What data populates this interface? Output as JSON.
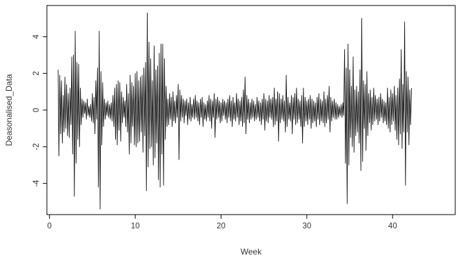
{
  "chart_data": {
    "type": "line",
    "title": "",
    "xlabel": "Week",
    "ylabel": "Deasonalised_Data",
    "xlim": [
      -0.3,
      47.3
    ],
    "ylim": [
      -5.7,
      5.7
    ],
    "xticks": [
      0,
      10,
      20,
      30,
      40
    ],
    "yticks": [
      -4,
      -2,
      0,
      2,
      4
    ],
    "grid": false,
    "legend": "none",
    "colors": {
      "line": "#111111",
      "axis": "#000000",
      "text": "#333333"
    },
    "series": [
      {
        "x_start": 1.0,
        "x_step": 0.1,
        "values": [
          2.2,
          -2.5,
          1.9,
          -1.3,
          1.6,
          -1.8,
          0.8,
          -1.2,
          1.8,
          -1.0,
          1.4,
          -1.4,
          0.9,
          -1.5,
          1.2,
          -0.8,
          2.9,
          -2.4,
          3.0,
          -4.7,
          4.3,
          -2.9,
          2.6,
          -1.6,
          2.5,
          -2.0,
          1.2,
          -0.8,
          0.6,
          -0.4,
          0.5,
          -0.2,
          0.4,
          -0.5,
          0.6,
          -0.3,
          0.2,
          -0.4,
          0.3,
          -0.6,
          0.9,
          -0.7,
          0.7,
          -1.3,
          1.6,
          -0.5,
          2.3,
          -4.2,
          4.3,
          -5.4,
          2.1,
          -1.9,
          1.5,
          -0.9,
          0.6,
          -0.5,
          0.4,
          -0.3,
          0.5,
          -0.4,
          0.3,
          -0.5,
          0.4,
          -0.6,
          0.8,
          -0.9,
          1.2,
          -1.6,
          1.4,
          -1.9,
          1.6,
          -1.1,
          1.5,
          -1.7,
          1.0,
          -0.7,
          0.7,
          -0.4,
          0.5,
          -0.9,
          1.4,
          -1.2,
          0.9,
          -2.4,
          1.9,
          -1.8,
          1.5,
          -0.9,
          1.3,
          -1.9,
          2.0,
          -2.0,
          2.1,
          -1.8,
          1.6,
          -1.7,
          1.8,
          -1.2,
          1.9,
          -2.3,
          2.3,
          -1.4,
          2.6,
          -4.4,
          5.3,
          -3.1,
          3.7,
          -2.1,
          2.8,
          -2.0,
          1.6,
          -3.0,
          3.5,
          -2.6,
          2.2,
          -1.8,
          2.4,
          -3.8,
          3.1,
          -4.2,
          3.6,
          -2.4,
          3.6,
          -4.1,
          2.8,
          -1.6,
          1.3,
          -0.9,
          0.6,
          -0.8,
          0.9,
          -0.5,
          0.7,
          -0.9,
          1.0,
          -0.6,
          0.5,
          -0.7,
          0.8,
          -0.4,
          1.4,
          -2.7,
          1.1,
          -0.6,
          0.8,
          -0.4,
          0.6,
          -0.7,
          0.5,
          -0.3,
          0.6,
          -0.8,
          0.4,
          -0.5,
          0.7,
          -0.6,
          0.3,
          -0.4,
          0.6,
          -0.5,
          0.8,
          -0.4,
          0.5,
          -0.6,
          0.4,
          -0.8,
          0.6,
          -0.4,
          0.7,
          -0.9,
          0.4,
          -0.5,
          0.3,
          -0.6,
          0.5,
          -0.4,
          0.8,
          -0.6,
          0.6,
          -1.0,
          0.5,
          -0.4,
          0.9,
          -1.5,
          0.6,
          -0.5,
          0.7,
          -0.4,
          0.5,
          -0.7,
          0.4,
          -0.6,
          0.6,
          -0.3,
          0.5,
          -0.5,
          0.4,
          -0.7,
          0.6,
          -0.4,
          0.8,
          -0.6,
          0.5,
          -0.9,
          0.7,
          -0.5,
          0.4,
          -0.6,
          0.9,
          -0.4,
          0.6,
          -0.8,
          0.5,
          -0.6,
          0.7,
          -0.9,
          1.1,
          -0.7,
          1.8,
          -1.3,
          0.8,
          -0.5,
          0.6,
          -0.7,
          0.4,
          -0.5,
          0.6,
          -0.4,
          0.5,
          -0.6,
          0.3,
          -0.5,
          0.7,
          -0.4,
          0.5,
          -0.6,
          0.4,
          -0.8,
          0.6,
          -0.5,
          0.9,
          -1.1,
          0.6,
          -0.6,
          0.5,
          -0.7,
          0.8,
          -0.4,
          0.6,
          -0.5,
          0.7,
          -0.9,
          1.2,
          -0.8,
          0.6,
          -0.6,
          1.0,
          -1.7,
          0.9,
          -0.7,
          0.6,
          -0.5,
          0.8,
          -0.6,
          0.5,
          -1.2,
          1.9,
          -0.9,
          0.7,
          -0.5,
          0.4,
          -0.6,
          0.8,
          -1.3,
          0.7,
          -0.5,
          0.9,
          -0.8,
          1.2,
          -0.7,
          0.6,
          -0.5,
          0.5,
          -0.9,
          0.8,
          -1.8,
          1.2,
          -0.9,
          0.7,
          -0.6,
          0.5,
          -0.8,
          0.6,
          -0.5,
          0.8,
          -1.0,
          0.6,
          -0.7,
          0.5,
          -0.6,
          0.4,
          -0.9,
          0.7,
          -0.5,
          0.9,
          -0.8,
          0.6,
          -0.6,
          0.5,
          -0.7,
          1.0,
          -0.9,
          0.6,
          -0.7,
          0.8,
          -0.5,
          1.3,
          -1.2,
          0.7,
          -0.6,
          0.5,
          -0.4,
          0.6,
          -0.5,
          0.4,
          -0.5,
          0.3,
          -0.4,
          0.2,
          -0.3,
          0.3,
          -0.4,
          0.4,
          -0.3,
          3.3,
          -2.9,
          2.3,
          -5.1,
          3.6,
          -3.0,
          2.2,
          -1.5,
          1.3,
          -2.0,
          2.9,
          -2.3,
          1.1,
          -1.4,
          1.3,
          -1.2,
          1.0,
          -1.8,
          2.2,
          -3.3,
          5.0,
          -2.8,
          1.6,
          -1.0,
          1.4,
          -2.2,
          2.1,
          -1.4,
          0.9,
          -0.7,
          1.1,
          -1.1,
          0.7,
          -0.8,
          1.2,
          -0.6,
          0.8,
          -0.5,
          0.6,
          -0.8,
          0.7,
          -0.6,
          0.9,
          -0.4,
          0.6,
          -0.7,
          0.5,
          -0.6,
          0.4,
          -0.8,
          1.2,
          -1.0,
          0.7,
          -1.2,
          1.1,
          -0.8,
          0.9,
          -0.6,
          1.3,
          -1.1,
          0.8,
          -1.6,
          1.2,
          -1.9,
          1.7,
          -1.3,
          3.3,
          -2.1,
          1.4,
          -1.2,
          4.8,
          -4.1,
          2.1,
          -1.2,
          1.8,
          -1.9,
          1.1,
          -0.8,
          1.2
        ]
      }
    ]
  }
}
